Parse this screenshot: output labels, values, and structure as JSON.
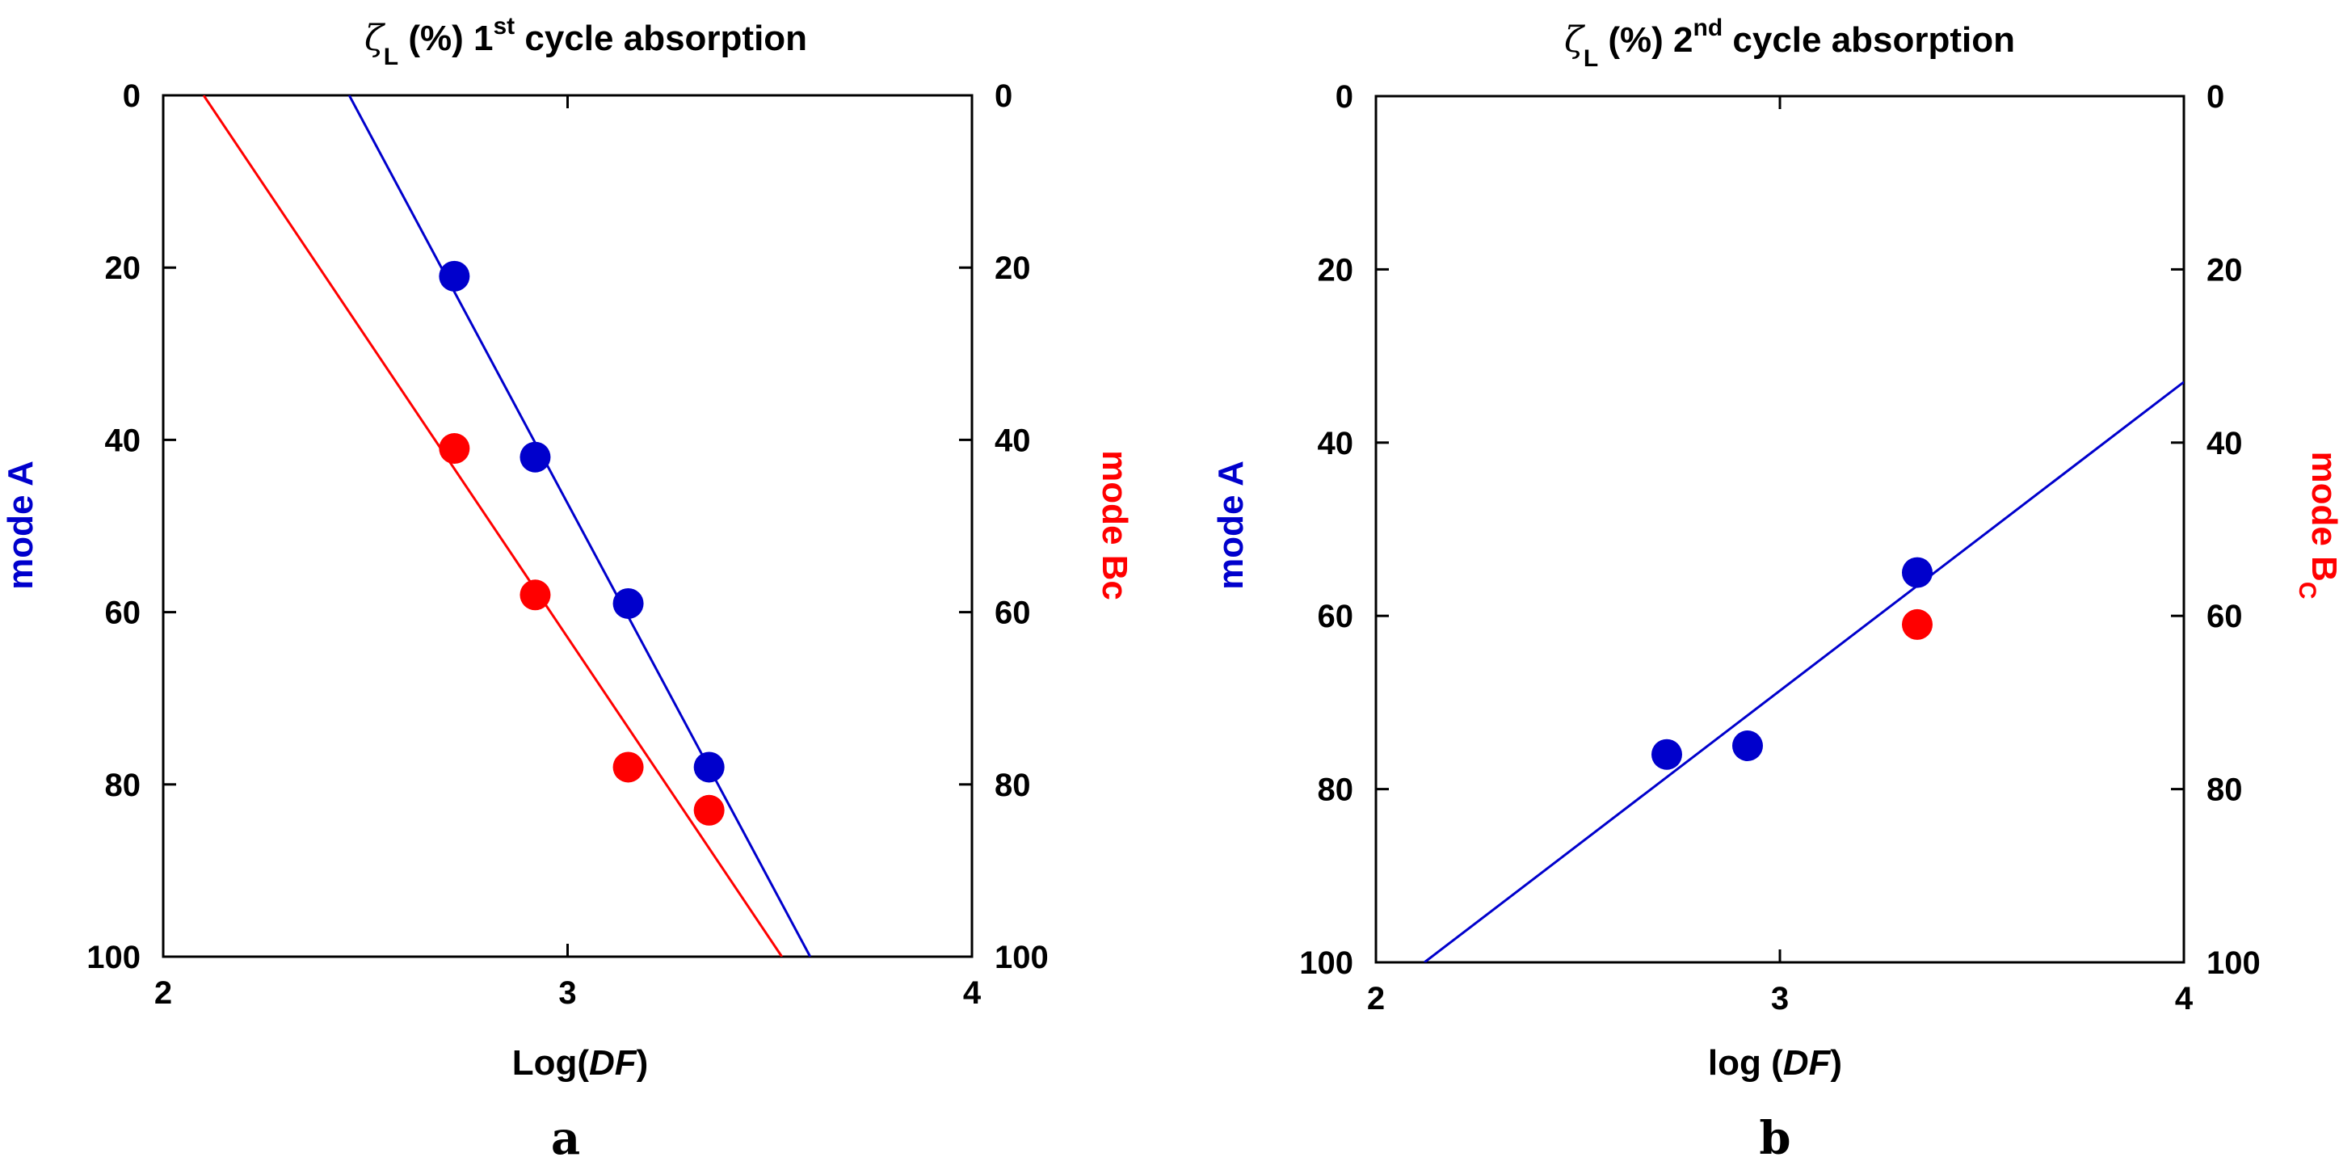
{
  "colors": {
    "mode_a": "#0000cc",
    "mode_bc": "#ff0000",
    "axis": "#000000"
  },
  "chart_data": [
    {
      "type": "scatter",
      "panel_label": "a",
      "title": {
        "symbol": "ζ",
        "sub": "L",
        "pre": " (%) 1",
        "sup": "st",
        "post": " cycle absorption"
      },
      "xlabel": {
        "pre": "Log(",
        "italic": "DF",
        "post": ")"
      },
      "ylabel_left": "mode A",
      "ylabel_right": "mode Bc",
      "xlim": [
        2,
        4
      ],
      "ylim": [
        0,
        100
      ],
      "y_inverted": true,
      "xticks": [
        "2",
        "3",
        "4"
      ],
      "yticks": [
        "0",
        "20",
        "40",
        "60",
        "80",
        "100"
      ],
      "series": [
        {
          "name": "mode A",
          "color": "#0000cc",
          "x": [
            2.72,
            2.92,
            3.15,
            3.35
          ],
          "y": [
            21,
            42,
            59,
            78
          ],
          "fit": {
            "x": [
              2.46,
              3.6
            ],
            "y": [
              0,
              100
            ]
          }
        },
        {
          "name": "mode Bc",
          "color": "#ff0000",
          "x": [
            2.72,
            2.92,
            3.15,
            3.35
          ],
          "y": [
            41,
            58,
            78,
            83
          ],
          "fit": {
            "x": [
              2.1,
              3.53
            ],
            "y": [
              0,
              100
            ]
          }
        }
      ]
    },
    {
      "type": "scatter",
      "panel_label": "b",
      "title": {
        "symbol": "ζ",
        "sub": "L",
        "pre": " (%)  2",
        "sup": "nd",
        "post": " cycle absorption"
      },
      "xlabel": {
        "pre": "log (",
        "italic": "DF",
        "post": ")"
      },
      "ylabel_left": "mode A",
      "ylabel_right": "mode B",
      "ylabel_right_sub": "C",
      "xlim": [
        2,
        4
      ],
      "ylim": [
        0,
        100
      ],
      "y_inverted": true,
      "xticks": [
        "2",
        "3",
        "4"
      ],
      "yticks": [
        "0",
        "20",
        "40",
        "60",
        "80",
        "100"
      ],
      "series": [
        {
          "name": "mode A",
          "color": "#0000cc",
          "x": [
            2.72,
            2.92,
            3.34
          ],
          "y": [
            76,
            75,
            55
          ],
          "fit": {
            "x": [
              2.12,
              4.0
            ],
            "y": [
              100,
              33
            ]
          }
        },
        {
          "name": "mode Bc",
          "color": "#ff0000",
          "x": [
            3.34
          ],
          "y": [
            61
          ]
        }
      ]
    }
  ]
}
